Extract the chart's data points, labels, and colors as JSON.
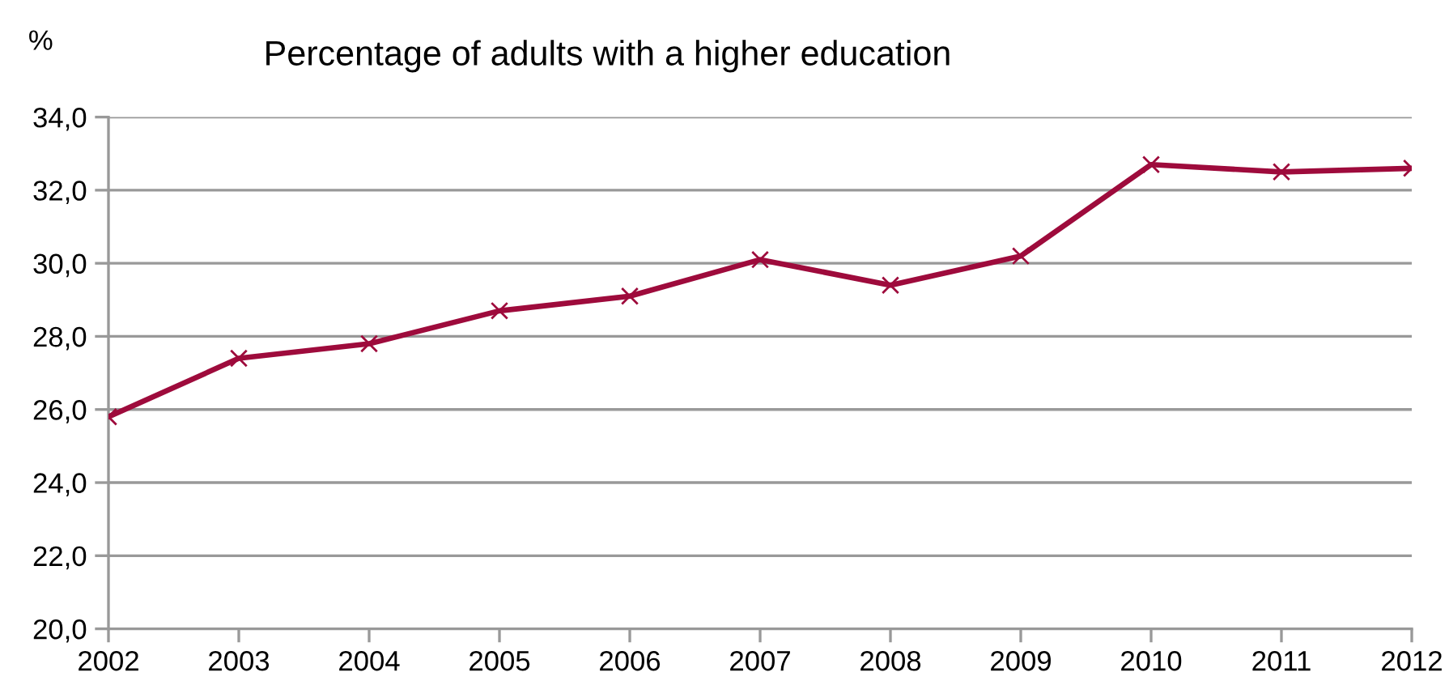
{
  "chart_data": {
    "type": "line",
    "title": "Percentage of adults with a higher education",
    "ylabel": "%",
    "categories": [
      "2002",
      "2003",
      "2004",
      "2005",
      "2006",
      "2007",
      "2008",
      "2009",
      "2010",
      "2011",
      "2012"
    ],
    "series": [
      {
        "color": "#9e0b3c",
        "values": [
          25.8,
          27.4,
          27.8,
          28.7,
          29.1,
          30.1,
          29.4,
          30.2,
          32.7,
          32.5,
          32.6
        ]
      }
    ],
    "ylim": [
      20,
      34
    ],
    "yticks": [
      {
        "value": 20,
        "label": "20,0"
      },
      {
        "value": 22,
        "label": "22,0"
      },
      {
        "value": 24,
        "label": "24,0"
      },
      {
        "value": 26,
        "label": "26,0"
      },
      {
        "value": 28,
        "label": "28,0"
      },
      {
        "value": 30,
        "label": "30,0"
      },
      {
        "value": 32,
        "label": "32,0"
      },
      {
        "value": 34,
        "label": "34,0"
      }
    ],
    "grid": "y",
    "marker": "cross",
    "line_style": "solid"
  }
}
